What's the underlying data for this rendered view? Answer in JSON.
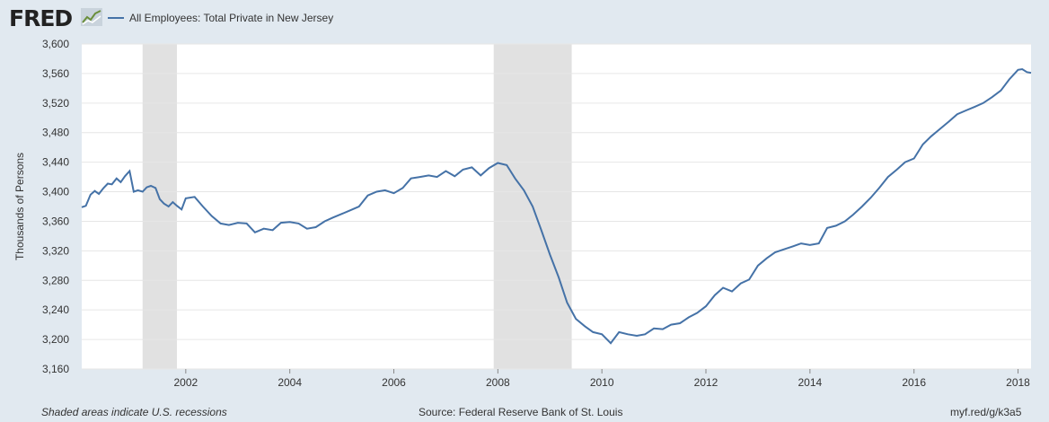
{
  "header": {
    "logo_text": "FRED",
    "series_title": "All Employees: Total Private in New Jersey",
    "series_color": "#4572a7"
  },
  "footer": {
    "recession_note": "Shaded areas indicate U.S. recessions",
    "source": "Source: Federal Reserve Bank of St. Louis",
    "short_url": "myf.red/g/k3a5"
  },
  "chart_data": {
    "type": "line",
    "title": "All Employees: Total Private in New Jersey",
    "ylabel": "Thousands of Persons",
    "xlabel": "",
    "ylim": [
      3160,
      3600
    ],
    "xlim": [
      2000.0,
      2018.25
    ],
    "yticks": [
      3160,
      3200,
      3240,
      3280,
      3320,
      3360,
      3400,
      3440,
      3480,
      3520,
      3560,
      3600
    ],
    "xticks": [
      2002,
      2004,
      2006,
      2008,
      2010,
      2012,
      2014,
      2016,
      2018
    ],
    "grid": true,
    "recessions": [
      [
        2001.17,
        2001.83
      ],
      [
        2007.92,
        2009.42
      ]
    ],
    "series": [
      {
        "color": "#4572a7",
        "x": [
          2000.0,
          2000.08,
          2000.17,
          2000.25,
          2000.33,
          2000.42,
          2000.5,
          2000.58,
          2000.67,
          2000.75,
          2000.83,
          2000.92,
          2001.0,
          2001.08,
          2001.17,
          2001.25,
          2001.33,
          2001.42,
          2001.5,
          2001.58,
          2001.67,
          2001.75,
          2001.83,
          2001.92,
          2002.0,
          2002.17,
          2002.33,
          2002.5,
          2002.67,
          2002.83,
          2003.0,
          2003.17,
          2003.33,
          2003.5,
          2003.67,
          2003.83,
          2004.0,
          2004.17,
          2004.33,
          2004.5,
          2004.67,
          2004.83,
          2005.0,
          2005.17,
          2005.33,
          2005.5,
          2005.67,
          2005.83,
          2006.0,
          2006.17,
          2006.33,
          2006.5,
          2006.67,
          2006.83,
          2007.0,
          2007.17,
          2007.33,
          2007.5,
          2007.67,
          2007.83,
          2008.0,
          2008.17,
          2008.33,
          2008.5,
          2008.67,
          2008.83,
          2009.0,
          2009.17,
          2009.33,
          2009.5,
          2009.67,
          2009.83,
          2010.0,
          2010.17,
          2010.33,
          2010.5,
          2010.67,
          2010.83,
          2011.0,
          2011.17,
          2011.33,
          2011.5,
          2011.67,
          2011.83,
          2012.0,
          2012.17,
          2012.33,
          2012.5,
          2012.67,
          2012.83,
          2013.0,
          2013.17,
          2013.33,
          2013.5,
          2013.67,
          2013.83,
          2014.0,
          2014.17,
          2014.33,
          2014.5,
          2014.67,
          2014.83,
          2015.0,
          2015.17,
          2015.33,
          2015.5,
          2015.67,
          2015.83,
          2016.0,
          2016.17,
          2016.33,
          2016.5,
          2016.67,
          2016.83,
          2017.0,
          2017.17,
          2017.33,
          2017.5,
          2017.67,
          2017.83,
          2018.0,
          2018.08,
          2018.17,
          2018.25
        ],
        "values": [
          3379,
          3381,
          3396,
          3401,
          3397,
          3405,
          3411,
          3410,
          3418,
          3413,
          3421,
          3428,
          3400,
          3402,
          3400,
          3406,
          3408,
          3405,
          3390,
          3384,
          3380,
          3386,
          3381,
          3376,
          3391,
          3393,
          3380,
          3367,
          3357,
          3355,
          3358,
          3357,
          3345,
          3350,
          3348,
          3358,
          3359,
          3357,
          3350,
          3352,
          3360,
          3365,
          3370,
          3375,
          3380,
          3395,
          3400,
          3402,
          3398,
          3405,
          3418,
          3420,
          3422,
          3420,
          3428,
          3421,
          3430,
          3433,
          3422,
          3432,
          3439,
          3436,
          3418,
          3402,
          3380,
          3349,
          3315,
          3284,
          3250,
          3228,
          3218,
          3210,
          3207,
          3195,
          3210,
          3207,
          3205,
          3207,
          3215,
          3214,
          3220,
          3222,
          3230,
          3236,
          3245,
          3260,
          3270,
          3265,
          3276,
          3281,
          3300,
          3310,
          3318,
          3322,
          3326,
          3330,
          3328,
          3330,
          3351,
          3354,
          3360,
          3369,
          3380,
          3392,
          3405,
          3420,
          3430,
          3440,
          3445,
          3464,
          3475,
          3485,
          3495,
          3505,
          3510,
          3515,
          3520,
          3528,
          3537,
          3552,
          3565,
          3566,
          3562,
          3561
        ]
      }
    ]
  }
}
